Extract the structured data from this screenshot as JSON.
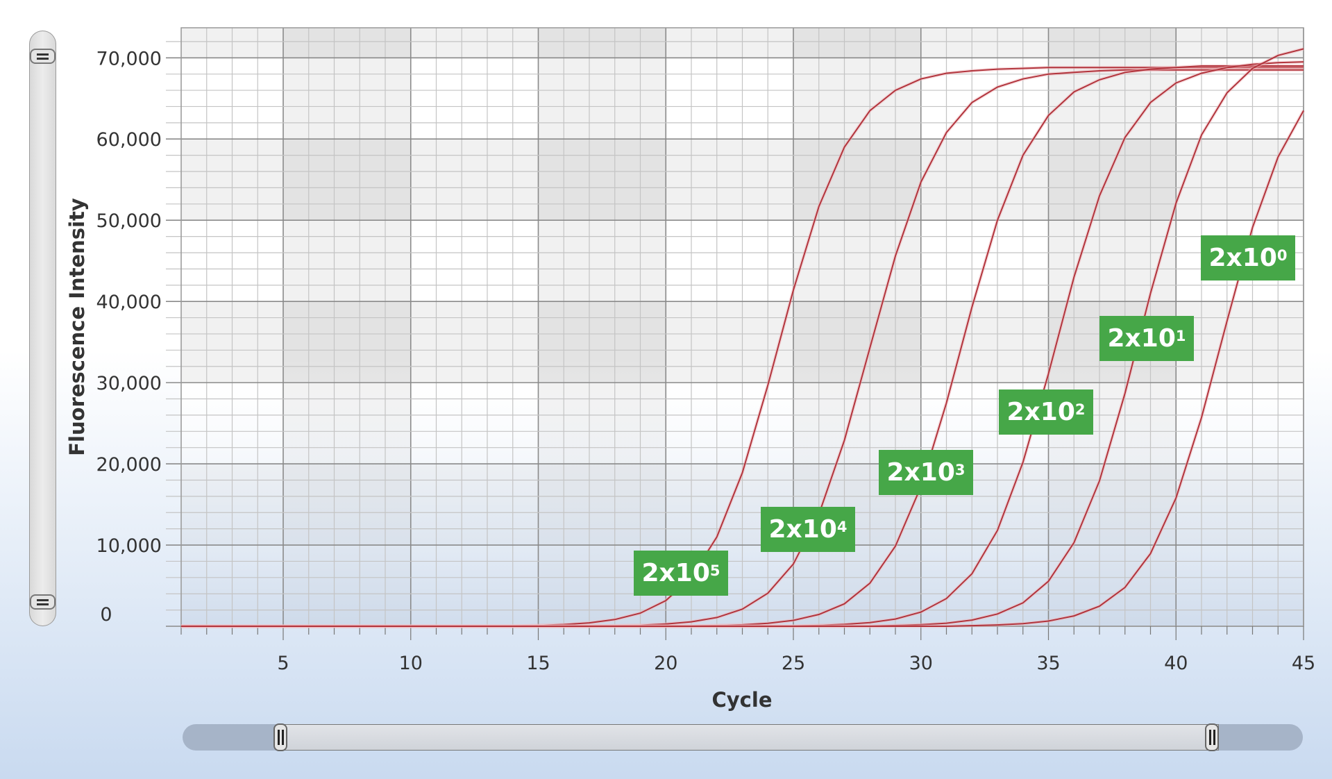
{
  "chart_data": {
    "type": "line",
    "title": "",
    "xlabel": "Cycle",
    "ylabel": "Fluorescence Intensity",
    "xlim": [
      1,
      45
    ],
    "ylim": [
      0,
      73700
    ],
    "xticks": [
      5,
      10,
      15,
      20,
      25,
      30,
      35,
      40,
      45
    ],
    "xtick_labels": [
      "5",
      "10",
      "15",
      "20",
      "25",
      "30",
      "35",
      "40",
      "45"
    ],
    "yticks": [
      0,
      10000,
      20000,
      30000,
      40000,
      50000,
      60000,
      70000
    ],
    "ytick_labels": [
      "0",
      "10,000",
      "20,000",
      "30,000",
      "40,000",
      "50,000",
      "60,000",
      "70,000"
    ],
    "grid": true,
    "line_color": "#b2343c",
    "label_color": "#46a748",
    "x": [
      1,
      2,
      3,
      4,
      5,
      6,
      7,
      8,
      9,
      10,
      11,
      12,
      13,
      14,
      15,
      16,
      17,
      18,
      19,
      20,
      21,
      22,
      23,
      24,
      25,
      26,
      27,
      28,
      29,
      30,
      31,
      32,
      33,
      34,
      35,
      36,
      37,
      38,
      39,
      40,
      41,
      42,
      43,
      44,
      45
    ],
    "series": [
      {
        "name": "2x10^5",
        "label_base": "2x10",
        "label_exp": "5",
        "values": [
          0,
          0,
          0,
          0,
          0,
          0,
          0,
          0,
          0,
          0,
          0,
          0,
          0,
          0,
          100,
          210,
          420,
          830,
          1620,
          3160,
          6030,
          11000,
          18900,
          29700,
          41400,
          51700,
          59000,
          63500,
          66000,
          67400,
          68100,
          68400,
          68600,
          68700,
          68800,
          68800,
          68800,
          68800,
          68800,
          68800,
          68800,
          68800,
          68800,
          68800,
          68800
        ]
      },
      {
        "name": "2x10^4",
        "label_base": "2x10",
        "label_exp": "4",
        "values": [
          0,
          0,
          0,
          0,
          0,
          0,
          0,
          0,
          0,
          0,
          0,
          0,
          0,
          0,
          0,
          0,
          0,
          60,
          130,
          270,
          550,
          1080,
          2110,
          4080,
          7670,
          13800,
          22900,
          34300,
          45600,
          54700,
          60800,
          64500,
          66400,
          67400,
          68000,
          68200,
          68400,
          68500,
          68500,
          68500,
          68500,
          68500,
          68500,
          68500,
          68500
        ]
      },
      {
        "name": "2x10^3",
        "label_base": "2x10",
        "label_exp": "3",
        "values": [
          0,
          0,
          0,
          0,
          0,
          0,
          0,
          0,
          0,
          0,
          0,
          0,
          0,
          0,
          0,
          0,
          0,
          0,
          0,
          0,
          0,
          90,
          180,
          370,
          730,
          1450,
          2760,
          5310,
          9870,
          17200,
          27500,
          39300,
          50000,
          58000,
          62900,
          65800,
          67300,
          68200,
          68600,
          68800,
          69000,
          69000,
          69000,
          69000,
          69000
        ]
      },
      {
        "name": "2x10^2",
        "label_base": "2x10",
        "label_exp": "2",
        "values": [
          0,
          0,
          0,
          0,
          0,
          0,
          0,
          0,
          0,
          0,
          0,
          0,
          0,
          0,
          0,
          0,
          0,
          0,
          0,
          0,
          0,
          0,
          0,
          0,
          0,
          110,
          230,
          450,
          890,
          1740,
          3410,
          6460,
          11800,
          20200,
          31100,
          43000,
          53000,
          60200,
          64500,
          66900,
          68100,
          68800,
          69200,
          69400,
          69500
        ]
      },
      {
        "name": "2x10^1",
        "label_base": "2x10",
        "label_exp": "1",
        "values": [
          0,
          0,
          0,
          0,
          0,
          0,
          0,
          0,
          0,
          0,
          0,
          0,
          0,
          0,
          0,
          0,
          0,
          0,
          0,
          0,
          0,
          0,
          0,
          0,
          0,
          0,
          0,
          0,
          90,
          190,
          380,
          760,
          1510,
          2880,
          5540,
          10300,
          17900,
          28700,
          41000,
          52100,
          60500,
          65700,
          68700,
          70300,
          71100
        ]
      },
      {
        "name": "2x10^0",
        "label_base": "2x10",
        "label_exp": "0",
        "values": [
          0,
          0,
          0,
          0,
          0,
          0,
          0,
          0,
          0,
          0,
          0,
          0,
          0,
          0,
          0,
          0,
          0,
          0,
          0,
          0,
          0,
          0,
          0,
          0,
          0,
          0,
          0,
          0,
          0,
          0,
          0,
          80,
          160,
          320,
          640,
          1270,
          2470,
          4790,
          8950,
          15800,
          25700,
          37600,
          49100,
          57800,
          63500
        ]
      }
    ]
  }
}
